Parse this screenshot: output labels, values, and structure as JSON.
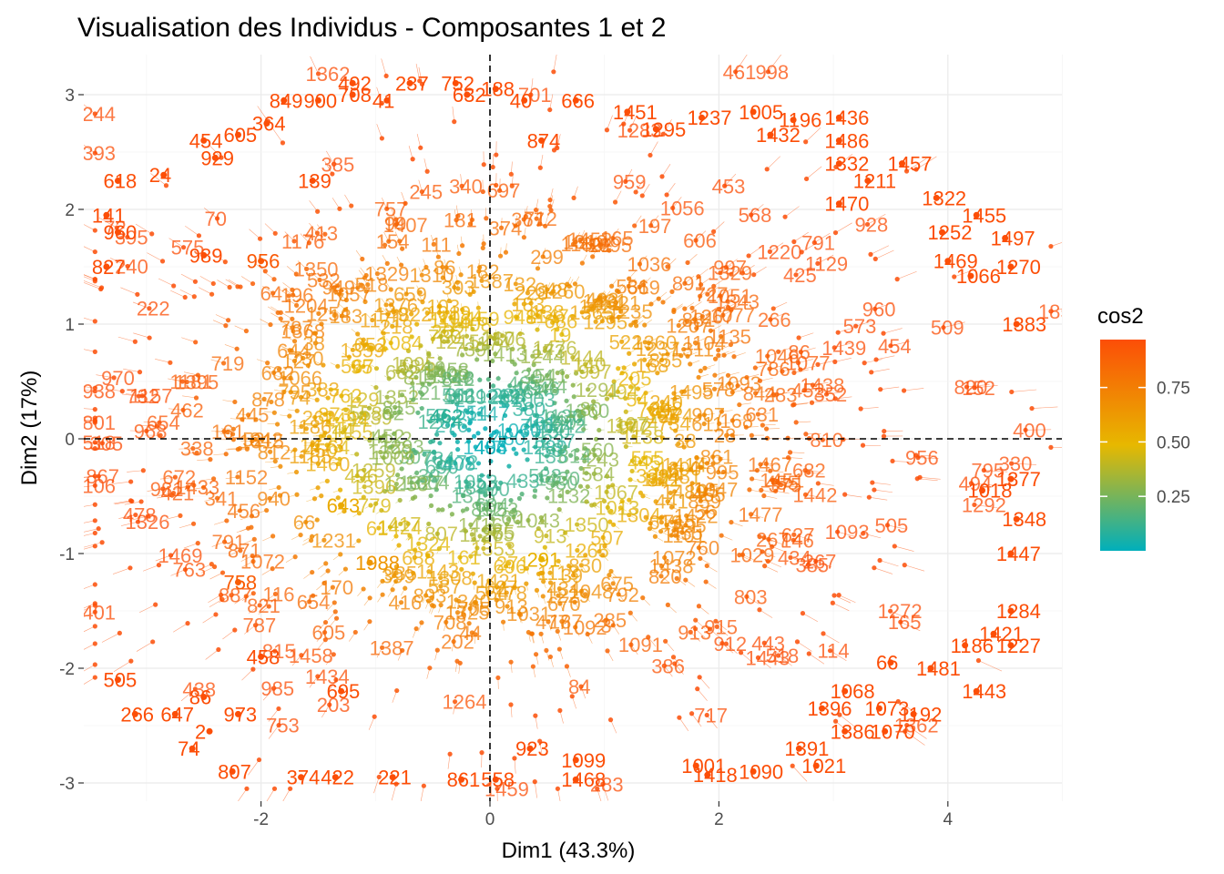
{
  "chart_data": {
    "type": "scatter",
    "title": "Visualisation des Individus - Composantes 1 et 2",
    "xlabel": "Dim1 (43.3%)",
    "ylabel": "Dim2 (17%)",
    "xlim": [
      -3.5,
      5.0
    ],
    "ylim": [
      -3.1,
      3.3
    ],
    "x_ticks": [
      -2,
      0,
      2,
      4
    ],
    "y_ticks": [
      -3,
      -2,
      -1,
      0,
      1,
      2,
      3
    ],
    "grid": true,
    "reference_lines": {
      "x": 0,
      "y": 0,
      "style": "dashed"
    },
    "color_variable": {
      "name": "cos2",
      "range": [
        0.0,
        0.97
      ],
      "ticks": [
        0.25,
        0.5,
        0.75
      ],
      "tick_labels": [
        "0.25",
        "0.50",
        "0.75"
      ],
      "colors": [
        "#00AFBB",
        "#E7B800",
        "#FC4E07"
      ]
    },
    "legend_position": "right",
    "labeled_points": [
      {
        "label": "492",
        "x": -1.2,
        "y": 3.1
      },
      {
        "label": "237",
        "x": -0.7,
        "y": 3.1
      },
      {
        "label": "752",
        "x": -0.3,
        "y": 3.1
      },
      {
        "label": "188",
        "x": 0.05,
        "y": 3.05
      },
      {
        "label": "632",
        "x": -0.2,
        "y": 3.0
      },
      {
        "label": "708",
        "x": -1.2,
        "y": 3.0
      },
      {
        "label": "41",
        "x": -0.9,
        "y": 2.95
      },
      {
        "label": "40",
        "x": 0.3,
        "y": 2.95
      },
      {
        "label": "666",
        "x": 0.75,
        "y": 2.95
      },
      {
        "label": "849",
        "x": -1.8,
        "y": 2.95
      },
      {
        "label": "900",
        "x": -1.5,
        "y": 2.95
      },
      {
        "label": "1451",
        "x": 1.2,
        "y": 2.85
      },
      {
        "label": "1237",
        "x": 1.85,
        "y": 2.8
      },
      {
        "label": "1005",
        "x": 2.3,
        "y": 2.85
      },
      {
        "label": "1196",
        "x": 2.65,
        "y": 2.78
      },
      {
        "label": "1436",
        "x": 3.05,
        "y": 2.8
      },
      {
        "label": "1295",
        "x": 1.45,
        "y": 2.7
      },
      {
        "label": "1432",
        "x": 2.45,
        "y": 2.65
      },
      {
        "label": "1486",
        "x": 3.05,
        "y": 2.6
      },
      {
        "label": "454",
        "x": -2.5,
        "y": 2.6
      },
      {
        "label": "605",
        "x": -2.2,
        "y": 2.65
      },
      {
        "label": "364",
        "x": -1.95,
        "y": 2.75
      },
      {
        "label": "874",
        "x": 0.45,
        "y": 2.6
      },
      {
        "label": "1457",
        "x": 3.6,
        "y": 2.4
      },
      {
        "label": "929",
        "x": -2.4,
        "y": 2.45
      },
      {
        "label": "1332",
        "x": 3.05,
        "y": 2.4
      },
      {
        "label": "24",
        "x": -2.85,
        "y": 2.3
      },
      {
        "label": "618",
        "x": -3.25,
        "y": 2.25
      },
      {
        "label": "139",
        "x": -1.55,
        "y": 2.25
      },
      {
        "label": "1211",
        "x": 3.3,
        "y": 2.25
      },
      {
        "label": "1322",
        "x": 3.9,
        "y": 2.1
      },
      {
        "label": "1470",
        "x": 3.05,
        "y": 2.05
      },
      {
        "label": "1455",
        "x": 4.25,
        "y": 1.95
      },
      {
        "label": "141",
        "x": -3.35,
        "y": 1.95
      },
      {
        "label": "1252",
        "x": 3.95,
        "y": 1.8
      },
      {
        "label": "1497",
        "x": 4.5,
        "y": 1.75
      },
      {
        "label": "960",
        "x": -3.25,
        "y": 1.8
      },
      {
        "label": "989",
        "x": -2.5,
        "y": 1.6
      },
      {
        "label": "956",
        "x": -2.0,
        "y": 1.55
      },
      {
        "label": "1469",
        "x": 4.0,
        "y": 1.55
      },
      {
        "label": "1270",
        "x": 4.55,
        "y": 1.5
      },
      {
        "label": "827",
        "x": -3.35,
        "y": 1.5
      },
      {
        "label": "1066",
        "x": 4.2,
        "y": 1.42
      },
      {
        "label": "1383",
        "x": 4.6,
        "y": 1.0
      },
      {
        "label": "462",
        "x": -0.4,
        "y": 0.2
      },
      {
        "label": "1377",
        "x": 4.55,
        "y": -0.35
      },
      {
        "label": "1018",
        "x": 4.3,
        "y": -0.45
      },
      {
        "label": "1348",
        "x": 4.6,
        "y": -0.7
      },
      {
        "label": "643",
        "x": -1.3,
        "y": -0.58
      },
      {
        "label": "1447",
        "x": 4.55,
        "y": -1.0
      },
      {
        "label": "291",
        "x": 0.45,
        "y": -1.05
      },
      {
        "label": "1988",
        "x": -1.05,
        "y": -1.08
      },
      {
        "label": "1284",
        "x": 4.55,
        "y": -1.5
      },
      {
        "label": "1421",
        "x": 4.4,
        "y": -1.7
      },
      {
        "label": "1227",
        "x": 4.55,
        "y": -1.8
      },
      {
        "label": "1186",
        "x": 4.15,
        "y": -1.8
      },
      {
        "label": "1481",
        "x": 3.85,
        "y": -2.0
      },
      {
        "label": "1443",
        "x": 4.25,
        "y": -2.2
      },
      {
        "label": "505",
        "x": -3.25,
        "y": -2.1
      },
      {
        "label": "1068",
        "x": 3.1,
        "y": -2.2
      },
      {
        "label": "1192",
        "x": 3.7,
        "y": -2.4
      },
      {
        "label": "1396",
        "x": 2.9,
        "y": -2.35
      },
      {
        "label": "1073",
        "x": 3.4,
        "y": -2.35
      },
      {
        "label": "1070",
        "x": 3.45,
        "y": -2.55
      },
      {
        "label": "1386",
        "x": 3.1,
        "y": -2.55
      },
      {
        "label": "266",
        "x": -3.1,
        "y": -2.4
      },
      {
        "label": "647",
        "x": -2.75,
        "y": -2.4
      },
      {
        "label": "74",
        "x": -2.6,
        "y": -2.7
      },
      {
        "label": "1391",
        "x": 2.7,
        "y": -2.7
      },
      {
        "label": "1021",
        "x": 2.85,
        "y": -2.85
      },
      {
        "label": "1090",
        "x": 2.3,
        "y": -2.9
      },
      {
        "label": "1418",
        "x": 1.9,
        "y": -2.93
      },
      {
        "label": "1468",
        "x": 0.75,
        "y": -2.97
      },
      {
        "label": "558",
        "x": 0.05,
        "y": -2.97
      },
      {
        "label": "861",
        "x": -0.25,
        "y": -2.97
      },
      {
        "label": "807",
        "x": -2.25,
        "y": -2.9
      },
      {
        "label": "374",
        "x": -1.65,
        "y": -2.95
      },
      {
        "label": "422",
        "x": -1.35,
        "y": -2.95
      },
      {
        "label": "221",
        "x": -0.85,
        "y": -2.95
      },
      {
        "label": "1001",
        "x": 1.8,
        "y": -2.85
      },
      {
        "label": "1099",
        "x": 0.75,
        "y": -2.8
      },
      {
        "label": "923",
        "x": 0.35,
        "y": -2.7
      },
      {
        "label": "2",
        "x": -2.45,
        "y": -2.55
      },
      {
        "label": "973",
        "x": -2.2,
        "y": -2.4
      },
      {
        "label": "86",
        "x": -2.5,
        "y": -2.25
      },
      {
        "label": "695",
        "x": -1.3,
        "y": -2.2
      },
      {
        "label": "458",
        "x": -2.0,
        "y": -1.9
      },
      {
        "label": "758",
        "x": -2.2,
        "y": -1.25
      },
      {
        "label": "66",
        "x": 3.5,
        "y": -1.95
      }
    ]
  }
}
